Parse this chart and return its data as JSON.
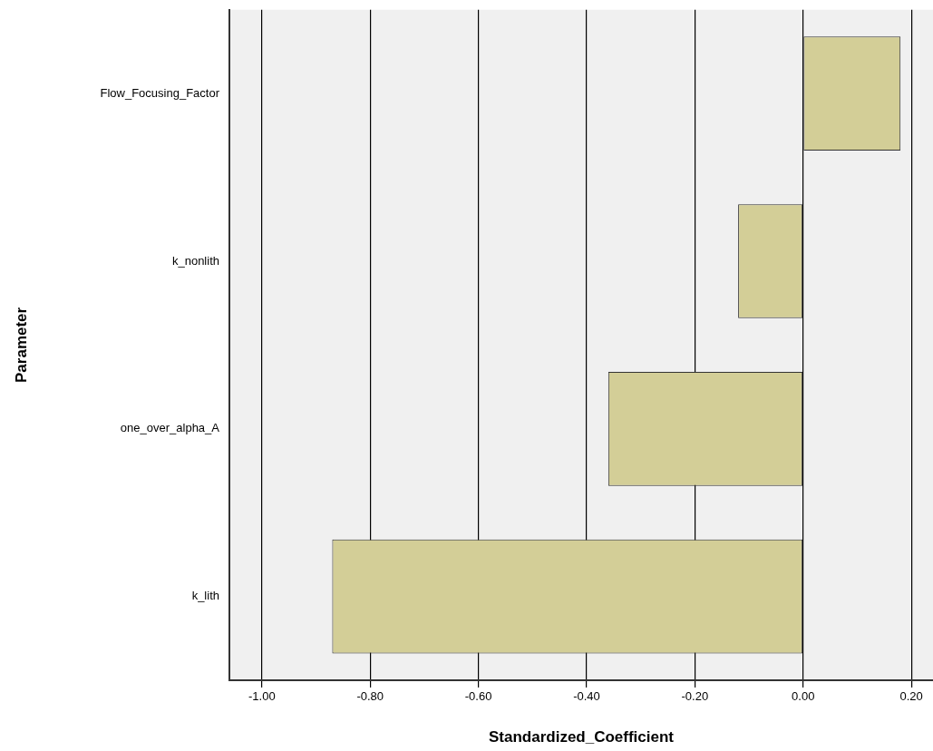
{
  "chart_data": {
    "type": "bar",
    "orientation": "horizontal",
    "categories": [
      "Flow_Focusing_Factor",
      "k_nonlith",
      "one_over_alpha_A",
      "k_lith"
    ],
    "values": [
      0.18,
      -0.12,
      -0.36,
      -0.87
    ],
    "color": "#d3ce97",
    "xlabel": "Standardized_Coefficient",
    "ylabel": "Parameter",
    "xlim": [
      -1.06,
      0.24
    ],
    "xticks": [
      {
        "value": -1,
        "label": "-1.00"
      },
      {
        "value": -0.8,
        "label": "-0.80"
      },
      {
        "value": -0.6,
        "label": "-0.60"
      },
      {
        "value": -0.4,
        "label": "-0.40"
      },
      {
        "value": -0.2,
        "label": "-0.20"
      },
      {
        "value": 0,
        "label": "0.00"
      },
      {
        "value": 0.2,
        "label": "0.20"
      }
    ],
    "grid": "x",
    "legend": false
  }
}
